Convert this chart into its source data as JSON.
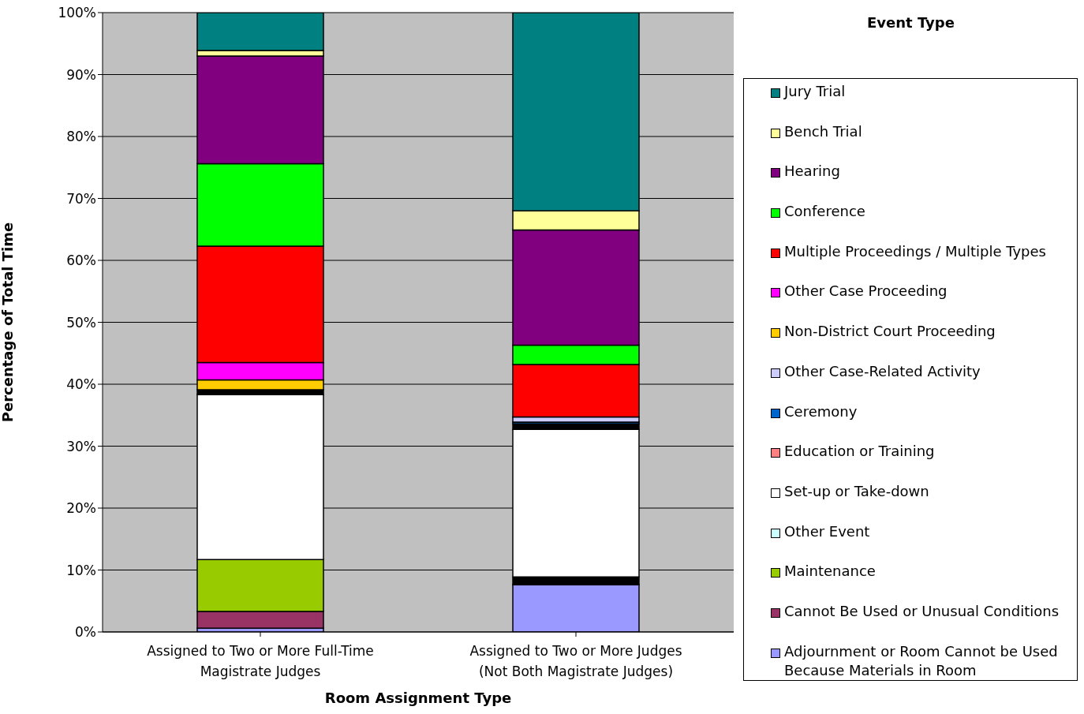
{
  "chart_data": {
    "type": "bar",
    "stacked": true,
    "xlabel": "Room Assignment Type",
    "ylabel": "Percentage of Total Time",
    "legend_title": "Event Type",
    "legend": "right",
    "grid": "y",
    "categories": [
      "Assigned to Two or More Full-Time Magistrate Judges",
      "Assigned to Two or More Judges (Not Both Magistrate Judges)"
    ],
    "ylim": [
      0,
      100
    ],
    "yticks": [
      {
        "value": 0,
        "label": "0%"
      },
      {
        "value": 10,
        "label": "10%"
      },
      {
        "value": 20,
        "label": "20%"
      },
      {
        "value": 30,
        "label": "30%"
      },
      {
        "value": 40,
        "label": "40%"
      },
      {
        "value": 50,
        "label": "50%"
      },
      {
        "value": 60,
        "label": "60%"
      },
      {
        "value": 70,
        "label": "70%"
      },
      {
        "value": 80,
        "label": "80%"
      },
      {
        "value": 90,
        "label": "90%"
      },
      {
        "value": 100,
        "label": "100%"
      }
    ],
    "series": [
      {
        "name": "Adjournment or Room Cannot be Used Because Materials in Room",
        "color": "#9999ff",
        "values": [
          0.6,
          7.6
        ]
      },
      {
        "name": "Cannot Be Used or Unusual Conditions",
        "color": "#993366",
        "values": [
          2.7,
          0
        ]
      },
      {
        "name": "Maintenance",
        "color": "#99cc00",
        "values": [
          8.4,
          0
        ]
      },
      {
        "color": "#000000",
        "values": [
          0,
          1.3
        ]
      },
      {
        "name": "Other Event",
        "color": "#ccffff",
        "values": [
          0,
          0
        ]
      },
      {
        "name": "Set-up or Take-down",
        "color": "#ffffff",
        "values": [
          26.6,
          23.8
        ]
      },
      {
        "color": "#000000",
        "values": [
          0.8,
          0.9
        ]
      },
      {
        "name": "Education or Training",
        "color": "#ff8080",
        "values": [
          0,
          0
        ]
      },
      {
        "name": "Ceremony",
        "color": "#0066cc",
        "values": [
          0,
          0.3
        ]
      },
      {
        "name": "Other Case-Related Activity",
        "color": "#ccccff",
        "values": [
          0,
          0.8
        ]
      },
      {
        "name": "Non-District Court Proceeding",
        "color": "#ffcc00",
        "values": [
          1.6,
          0
        ]
      },
      {
        "name": "Other Case Proceeding",
        "color": "#ff00ff",
        "values": [
          2.8,
          0
        ]
      },
      {
        "name": "Multiple Proceedings / Multiple Types",
        "color": "#ff0000",
        "values": [
          18.8,
          8.5
        ]
      },
      {
        "name": "Conference",
        "color": "#00ff00",
        "values": [
          13.3,
          3.1
        ]
      },
      {
        "name": "Hearing",
        "color": "#800080",
        "values": [
          17.4,
          18.6
        ]
      },
      {
        "name": "Bench Trial",
        "color": "#ffff99",
        "values": [
          0.9,
          3.1
        ]
      },
      {
        "name": "Jury Trial",
        "color": "#008080",
        "values": [
          6.1,
          32.0
        ]
      }
    ]
  }
}
